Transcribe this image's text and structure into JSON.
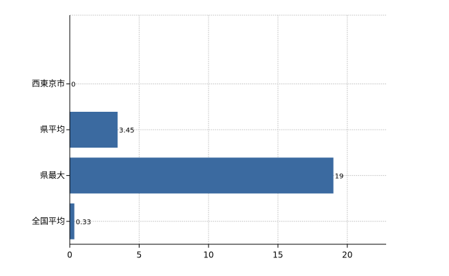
{
  "chart_data": {
    "type": "hbar",
    "categories": [
      "西東京市",
      "県平均",
      "県最大",
      "全国平均"
    ],
    "values": [
      0,
      3.45,
      19,
      0.33
    ],
    "color": "#3b6aa0",
    "xlim": [
      0,
      22.8
    ],
    "xticks": [
      0,
      5,
      10,
      15,
      20
    ],
    "grid": true
  }
}
